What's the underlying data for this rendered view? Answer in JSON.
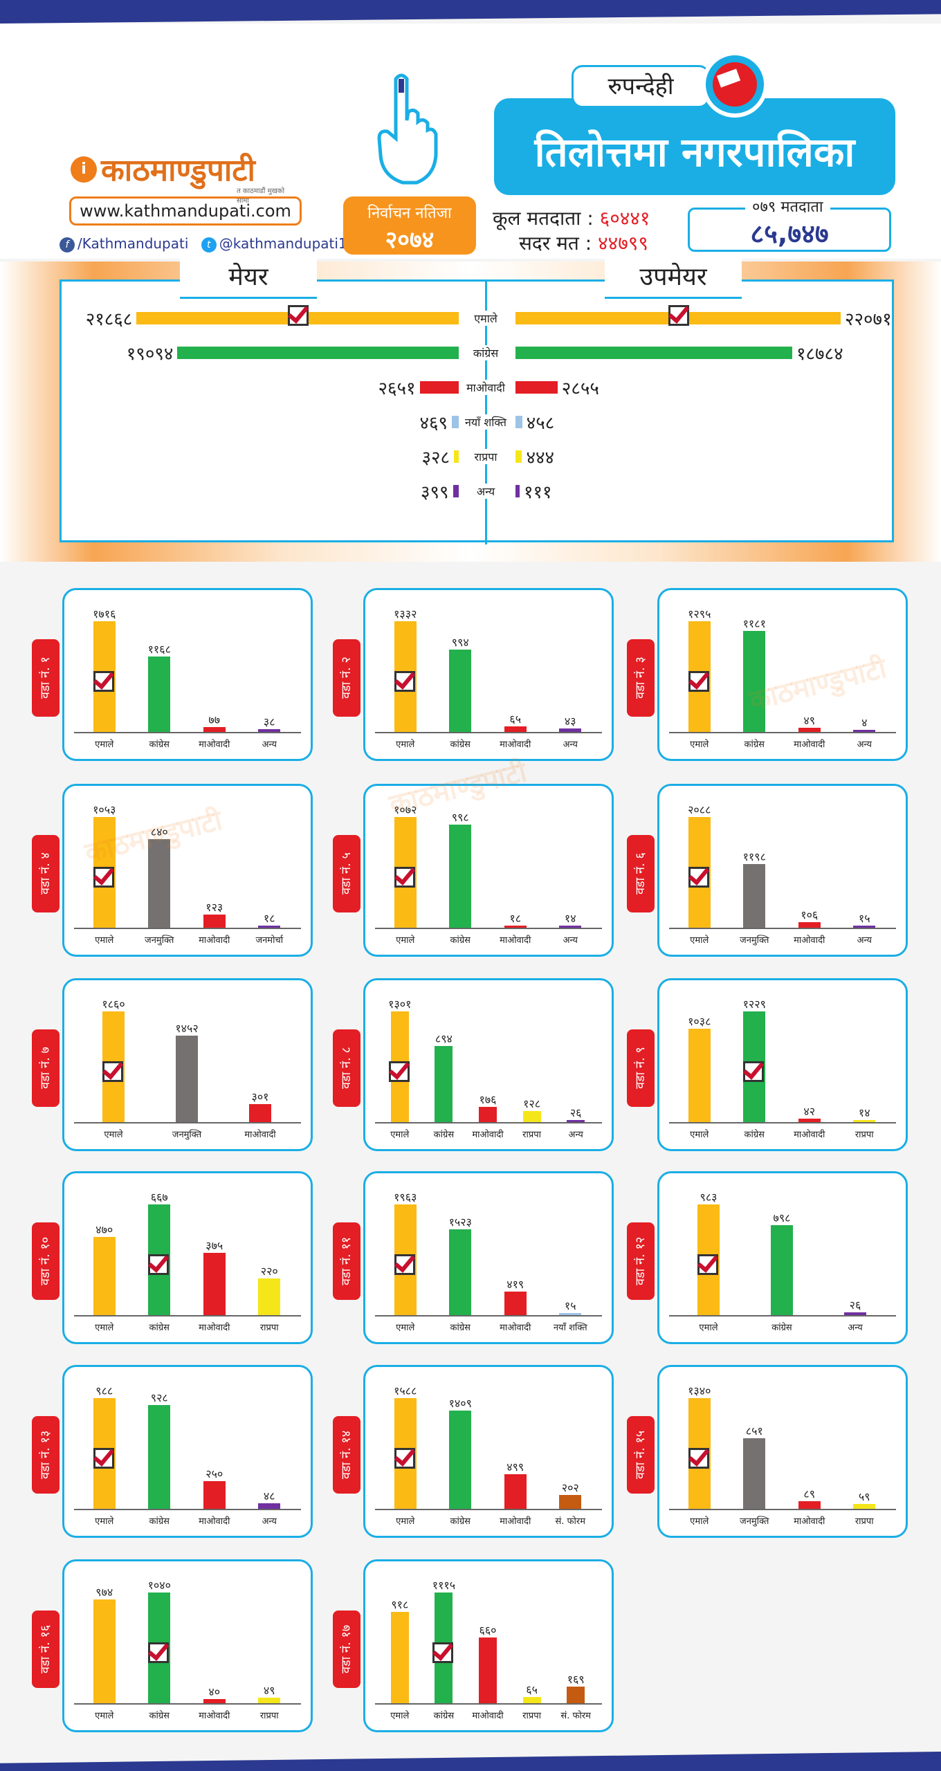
{
  "header": {
    "logo_name": "काठमाण्डुपाटी",
    "logo_tagline": "त काठमाडौं मुखको सामा",
    "url": "www.kathmandupati.com",
    "facebook": "/Kathmandupati",
    "twitter": "@kathmandupati1",
    "badge_line1": "निर्वाचन नतिजा",
    "badge_line2": "२०७४",
    "district": "रुपन्देही",
    "municipality": "तिलोत्तमा नगरपालिका",
    "total_voters_label": "कूल मतदाता :",
    "total_voters": "६०४४१",
    "valid_votes_label": "सदर मत :",
    "valid_votes": "४४७९९",
    "year_voters_label": "०७९ मतदाता",
    "year_voters": "८५,७४७"
  },
  "colors": {
    "एमाले": "#fbba14",
    "कांग्रेस": "#22b14c",
    "माओवादी": "#e31e24",
    "नयाँ शक्ति": "#9dc3e6",
    "राप्रपा": "#f5e61a",
    "अन्य": "#7030a0",
    "जनमुक्ति": "#767171",
    "जनमोर्चा": "#7030a0",
    "सं. फोरम": "#c55a11"
  },
  "chart_data": [
    {
      "type": "bar",
      "title": "मेयर / उपमेयर",
      "mayor_label": "मेयर",
      "deputy_label": "उपमेयर",
      "categories": [
        "एमाले",
        "कांग्रेस",
        "माओवादी",
        "नयाँ शक्ति",
        "राप्रपा",
        "अन्य"
      ],
      "series": [
        {
          "name": "मेयर",
          "values": [
            21868,
            19094,
            2651,
            469,
            328,
            399
          ],
          "labels": [
            "२१८६८",
            "१९०९४",
            "२६५१",
            "४६९",
            "३२८",
            "३९९"
          ],
          "winner": 0
        },
        {
          "name": "उपमेयर",
          "values": [
            22071,
            18784,
            2855,
            458,
            444,
            111
          ],
          "labels": [
            "२२०७१",
            "१८७८४",
            "२८५५",
            "४५८",
            "४४४",
            "१११"
          ],
          "winner": 0
        }
      ]
    },
    {
      "type": "bar",
      "title": "वडा नं. १",
      "categories": [
        "एमाले",
        "कांग्रेस",
        "माओवादी",
        "अन्य"
      ],
      "values": [
        1716,
        1168,
        77,
        38
      ],
      "labels": [
        "१७१६",
        "११६८",
        "७७",
        "३८"
      ],
      "winner": 0,
      "ylim": [
        0,
        1716
      ]
    },
    {
      "type": "bar",
      "title": "वडा नं. २",
      "categories": [
        "एमाले",
        "कांग्रेस",
        "माओवादी",
        "अन्य"
      ],
      "values": [
        1332,
        994,
        65,
        43
      ],
      "labels": [
        "१३३२",
        "९९४",
        "६५",
        "४३"
      ],
      "winner": 0,
      "ylim": [
        0,
        1332
      ]
    },
    {
      "type": "bar",
      "title": "वडा नं. ३",
      "categories": [
        "एमाले",
        "कांग्रेस",
        "माओवादी",
        "अन्य"
      ],
      "values": [
        1295,
        1181,
        49,
        4
      ],
      "labels": [
        "१२९५",
        "११८१",
        "४९",
        "४"
      ],
      "winner": 0,
      "ylim": [
        0,
        1295
      ]
    },
    {
      "type": "bar",
      "title": "वडा नं. ४",
      "categories": [
        "एमाले",
        "जनमुक्ति",
        "माओवादी",
        "जनमोर्चा"
      ],
      "values": [
        1053,
        840,
        123,
        18
      ],
      "labels": [
        "१०५३",
        "८४०",
        "१२३",
        "१८"
      ],
      "winner": 0,
      "ylim": [
        0,
        1053
      ]
    },
    {
      "type": "bar",
      "title": "वडा नं. ५",
      "categories": [
        "एमाले",
        "कांग्रेस",
        "माओवादी",
        "अन्य"
      ],
      "values": [
        1072,
        998,
        18,
        14
      ],
      "labels": [
        "१०७२",
        "९९८",
        "१८",
        "१४"
      ],
      "winner": 0,
      "ylim": [
        0,
        1072
      ]
    },
    {
      "type": "bar",
      "title": "वडा नं. ६",
      "categories": [
        "एमाले",
        "जनमुक्ति",
        "माओवादी",
        "अन्य"
      ],
      "values": [
        2088,
        1198,
        106,
        15
      ],
      "labels": [
        "२०८८",
        "११९८",
        "१०६",
        "१५"
      ],
      "winner": 0,
      "ylim": [
        0,
        2088
      ]
    },
    {
      "type": "bar",
      "title": "वडा नं. ७",
      "categories": [
        "एमाले",
        "जनमुक्ति",
        "माओवादी"
      ],
      "values": [
        1860,
        1452,
        301
      ],
      "labels": [
        "१८६०",
        "१४५२",
        "३०१"
      ],
      "winner": 0,
      "ylim": [
        0,
        1860
      ]
    },
    {
      "type": "bar",
      "title": "वडा नं. ८",
      "categories": [
        "एमाले",
        "कांग्रेस",
        "माओवादी",
        "राप्रपा",
        "अन्य"
      ],
      "values": [
        1301,
        894,
        176,
        128,
        26
      ],
      "labels": [
        "१३०१",
        "८९४",
        "१७६",
        "१२८",
        "२६"
      ],
      "winner": 0,
      "ylim": [
        0,
        1301
      ]
    },
    {
      "type": "bar",
      "title": "वडा नं. ९",
      "categories": [
        "एमाले",
        "कांग्रेस",
        "माओवादी",
        "राप्रपा"
      ],
      "values": [
        1038,
        1229,
        42,
        14
      ],
      "labels": [
        "१०३८",
        "१२२९",
        "४२",
        "१४"
      ],
      "winner": 1,
      "ylim": [
        0,
        1229
      ]
    },
    {
      "type": "bar",
      "title": "वडा नं. १०",
      "categories": [
        "एमाले",
        "कांग्रेस",
        "माओवादी",
        "राप्रपा"
      ],
      "values": [
        470,
        667,
        375,
        220
      ],
      "labels": [
        "४७०",
        "६६७",
        "३७५",
        "२२०"
      ],
      "winner": 1,
      "ylim": [
        0,
        667
      ]
    },
    {
      "type": "bar",
      "title": "वडा नं. ११",
      "categories": [
        "एमाले",
        "कांग्रेस",
        "माओवादी",
        "नयाँ शक्ति"
      ],
      "values": [
        1963,
        1523,
        419,
        15
      ],
      "labels": [
        "१९६३",
        "१५२३",
        "४१९",
        "१५"
      ],
      "winner": 0,
      "ylim": [
        0,
        1963
      ]
    },
    {
      "type": "bar",
      "title": "वडा नं. १२",
      "categories": [
        "एमाले",
        "कांग्रेस",
        "अन्य"
      ],
      "values": [
        983,
        798,
        26
      ],
      "labels": [
        "९८३",
        "७९८",
        "२६"
      ],
      "winner": 0,
      "ylim": [
        0,
        983
      ]
    },
    {
      "type": "bar",
      "title": "वडा नं. १३",
      "categories": [
        "एमाले",
        "कांग्रेस",
        "माओवादी",
        "अन्य"
      ],
      "values": [
        988,
        928,
        250,
        48
      ],
      "labels": [
        "९८८",
        "९२८",
        "२५०",
        "४८"
      ],
      "winner": 0,
      "ylim": [
        0,
        988
      ]
    },
    {
      "type": "bar",
      "title": "वडा नं. १४",
      "categories": [
        "एमाले",
        "कांग्रेस",
        "माओवादी",
        "सं. फोरम"
      ],
      "values": [
        1588,
        1409,
        499,
        202
      ],
      "labels": [
        "१५८८",
        "१४०९",
        "४९९",
        "२०२"
      ],
      "winner": 0,
      "ylim": [
        0,
        1588
      ]
    },
    {
      "type": "bar",
      "title": "वडा नं. १५",
      "categories": [
        "एमाले",
        "जनमुक्ति",
        "माओवादी",
        "राप्रपा"
      ],
      "values": [
        1340,
        851,
        89,
        59
      ],
      "labels": [
        "१३४०",
        "८५१",
        "८९",
        "५९"
      ],
      "winner": 0,
      "ylim": [
        0,
        1340
      ]
    },
    {
      "type": "bar",
      "title": "वडा नं. १६",
      "categories": [
        "एमाले",
        "कांग्रेस",
        "माओवादी",
        "राप्रपा"
      ],
      "values": [
        974,
        1040,
        40,
        49
      ],
      "labels": [
        "९७४",
        "१०४०",
        "४०",
        "४९"
      ],
      "winner": 1,
      "ylim": [
        0,
        1040
      ]
    },
    {
      "type": "bar",
      "title": "वडा नं. १७",
      "categories": [
        "एमाले",
        "कांग्रेस",
        "माओवादी",
        "राप्रपा",
        "सं. फोरम"
      ],
      "values": [
        918,
        1115,
        660,
        65,
        169
      ],
      "labels": [
        "९१८",
        "१११५",
        "६६०",
        "६५",
        "१६९"
      ],
      "winner": 1,
      "ylim": [
        0,
        1115
      ]
    }
  ]
}
